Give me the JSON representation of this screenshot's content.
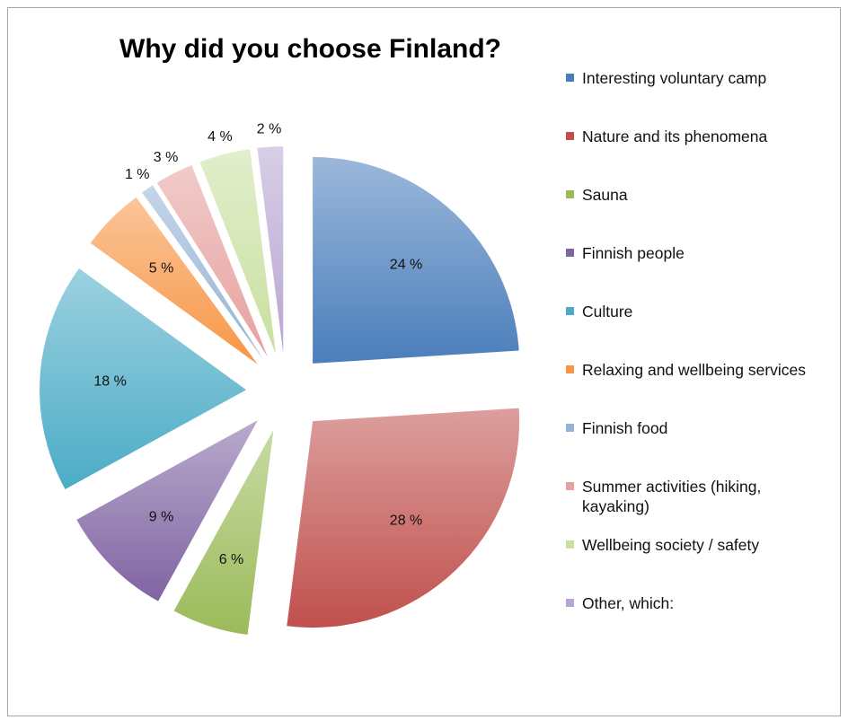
{
  "chart_data": {
    "type": "pie",
    "title": "Why did you choose Finland?",
    "exploded": true,
    "legend_position": "right",
    "categories": [
      "Interesting voluntary camp",
      "Nature and its phenomena",
      "Sauna",
      "Finnish people",
      "Culture",
      "Relaxing and wellbeing services",
      "Finnish food",
      "Summer activities (hiking, kayaking)",
      "Wellbeing society / safety",
      "Other, which:"
    ],
    "values": [
      24,
      28,
      6,
      9,
      18,
      5,
      1,
      3,
      4,
      2
    ],
    "data_labels": [
      "24 %",
      "28 %",
      "6 %",
      "9 %",
      "18 %",
      "5 %",
      "1 %",
      "3 %",
      "4 %",
      "2 %"
    ],
    "colors": [
      "#4a7ebb",
      "#c0504d",
      "#9bbb59",
      "#8064a2",
      "#4bacc6",
      "#f79646",
      "#95b3d7",
      "#e6a09e",
      "#c9e0a0",
      "#b8a6d2"
    ]
  }
}
